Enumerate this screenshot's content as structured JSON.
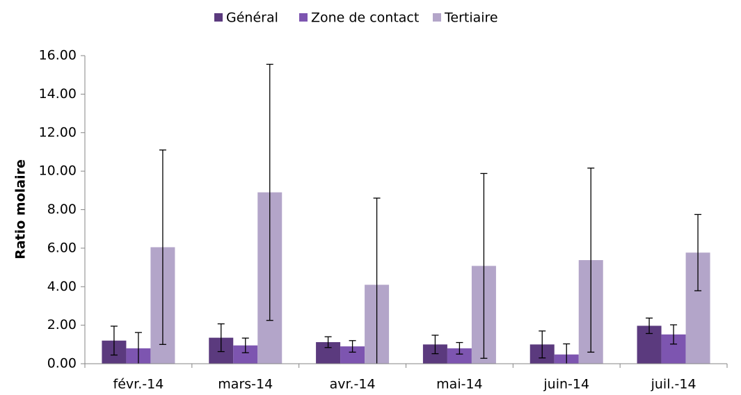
{
  "chart_data": {
    "type": "bar",
    "y_label": "Ratio molaire",
    "categories": [
      "févr.-14",
      "mars-14",
      "avr.-14",
      "mai-14",
      "juin-14",
      "juil.-14"
    ],
    "series": [
      {
        "name": "Général",
        "color": "#5b3a7e",
        "values": [
          1.2,
          1.35,
          1.12,
          1.0,
          1.0,
          1.97
        ],
        "errors": [
          0.75,
          0.72,
          0.28,
          0.48,
          0.7,
          0.4
        ]
      },
      {
        "name": "Zone de contact",
        "color": "#7d55b0",
        "values": [
          0.8,
          0.95,
          0.9,
          0.8,
          0.48,
          1.52
        ],
        "errors": [
          0.82,
          0.38,
          0.3,
          0.3,
          0.55,
          0.5
        ]
      },
      {
        "name": "Tertiaire",
        "color": "#b3a5c9",
        "values": [
          6.05,
          8.9,
          4.1,
          5.08,
          5.38,
          5.77
        ],
        "errors": [
          5.05,
          6.65,
          4.5,
          4.8,
          4.78,
          1.98
        ]
      }
    ],
    "ylim": [
      0,
      16
    ],
    "yticks": [
      {
        "value": 0,
        "label": "0.00"
      },
      {
        "value": 2,
        "label": "2.00"
      },
      {
        "value": 4,
        "label": "4.00"
      },
      {
        "value": 6,
        "label": "6.00"
      },
      {
        "value": 8,
        "label": "8.00"
      },
      {
        "value": 10,
        "label": "10.00"
      },
      {
        "value": 12,
        "label": "12.00"
      },
      {
        "value": 14,
        "label": "14.00"
      },
      {
        "value": 16,
        "label": "16.00"
      }
    ],
    "legend": "top",
    "grid": false
  }
}
